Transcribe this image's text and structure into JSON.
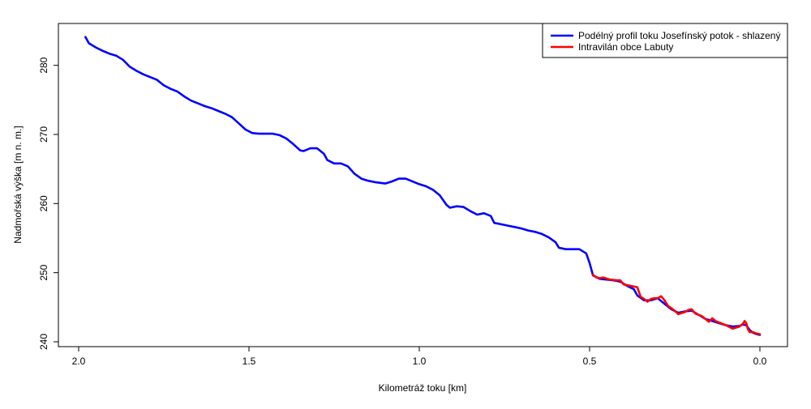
{
  "chart_data": {
    "type": "line",
    "xlabel": "Kilometráž toku [km]",
    "ylabel": "Nadmořská výška [m n. m.]",
    "xlim": [
      2.0,
      0.0
    ],
    "ylim": [
      240,
      285
    ],
    "x_reversed": true,
    "x_ticks": [
      2.0,
      1.5,
      1.0,
      0.5,
      0.0
    ],
    "x_tick_labels": [
      "2.0",
      "1.5",
      "1.0",
      "0.5",
      "0.0"
    ],
    "y_ticks": [
      240,
      250,
      260,
      270,
      280
    ],
    "y_tick_labels": [
      "240",
      "250",
      "260",
      "270",
      "280"
    ],
    "grid": false,
    "legend_position": "top-right",
    "legend": [
      {
        "label": "Podélný profil toku Josefínský potok - shlazený",
        "color": "#0000ff"
      },
      {
        "label": "Intravilán obce Labuty",
        "color": "#ff0000"
      }
    ],
    "series": [
      {
        "name": "Podélný profil toku Josefínský potok - shlazený",
        "color": "#0000ff",
        "points": [
          [
            1.98,
            284.1
          ],
          [
            1.97,
            283.2
          ],
          [
            1.95,
            282.6
          ],
          [
            1.93,
            282.1
          ],
          [
            1.91,
            281.7
          ],
          [
            1.89,
            281.4
          ],
          [
            1.87,
            280.8
          ],
          [
            1.85,
            279.8
          ],
          [
            1.83,
            279.2
          ],
          [
            1.81,
            278.7
          ],
          [
            1.79,
            278.3
          ],
          [
            1.77,
            277.9
          ],
          [
            1.75,
            277.1
          ],
          [
            1.73,
            276.6
          ],
          [
            1.71,
            276.2
          ],
          [
            1.69,
            275.5
          ],
          [
            1.67,
            274.9
          ],
          [
            1.65,
            274.5
          ],
          [
            1.63,
            274.1
          ],
          [
            1.61,
            273.8
          ],
          [
            1.59,
            273.4
          ],
          [
            1.57,
            273.0
          ],
          [
            1.55,
            272.5
          ],
          [
            1.53,
            271.6
          ],
          [
            1.51,
            270.7
          ],
          [
            1.49,
            270.2
          ],
          [
            1.47,
            270.1
          ],
          [
            1.45,
            270.1
          ],
          [
            1.43,
            270.1
          ],
          [
            1.41,
            269.9
          ],
          [
            1.39,
            269.4
          ],
          [
            1.37,
            268.6
          ],
          [
            1.35,
            267.7
          ],
          [
            1.34,
            267.6
          ],
          [
            1.32,
            268.0
          ],
          [
            1.3,
            268.0
          ],
          [
            1.28,
            267.2
          ],
          [
            1.27,
            266.3
          ],
          [
            1.25,
            265.8
          ],
          [
            1.23,
            265.8
          ],
          [
            1.21,
            265.4
          ],
          [
            1.19,
            264.3
          ],
          [
            1.17,
            263.6
          ],
          [
            1.15,
            263.3
          ],
          [
            1.13,
            263.1
          ],
          [
            1.1,
            262.9
          ],
          [
            1.08,
            263.2
          ],
          [
            1.06,
            263.6
          ],
          [
            1.04,
            263.6
          ],
          [
            1.02,
            263.2
          ],
          [
            1.0,
            262.8
          ],
          [
            0.98,
            262.5
          ],
          [
            0.96,
            262.0
          ],
          [
            0.94,
            261.2
          ],
          [
            0.92,
            259.8
          ],
          [
            0.91,
            259.4
          ],
          [
            0.89,
            259.6
          ],
          [
            0.87,
            259.5
          ],
          [
            0.85,
            258.9
          ],
          [
            0.83,
            258.4
          ],
          [
            0.81,
            258.6
          ],
          [
            0.79,
            258.2
          ],
          [
            0.78,
            257.2
          ],
          [
            0.76,
            257.0
          ],
          [
            0.74,
            256.8
          ],
          [
            0.72,
            256.6
          ],
          [
            0.7,
            256.4
          ],
          [
            0.68,
            256.1
          ],
          [
            0.66,
            255.9
          ],
          [
            0.64,
            255.6
          ],
          [
            0.62,
            255.1
          ],
          [
            0.6,
            254.4
          ],
          [
            0.59,
            253.6
          ],
          [
            0.57,
            253.4
          ],
          [
            0.55,
            253.4
          ],
          [
            0.53,
            253.4
          ],
          [
            0.51,
            252.8
          ],
          [
            0.5,
            251.4
          ],
          [
            0.49,
            249.6
          ],
          [
            0.47,
            249.1
          ],
          [
            0.45,
            249.0
          ],
          [
            0.43,
            248.9
          ],
          [
            0.41,
            248.7
          ],
          [
            0.39,
            248.1
          ],
          [
            0.37,
            247.6
          ],
          [
            0.36,
            246.7
          ],
          [
            0.34,
            246.0
          ],
          [
            0.32,
            246.0
          ],
          [
            0.3,
            246.3
          ],
          [
            0.28,
            245.5
          ],
          [
            0.26,
            244.7
          ],
          [
            0.24,
            244.2
          ],
          [
            0.22,
            244.4
          ],
          [
            0.2,
            244.5
          ],
          [
            0.18,
            243.9
          ],
          [
            0.16,
            243.3
          ],
          [
            0.14,
            243.0
          ],
          [
            0.12,
            242.7
          ],
          [
            0.1,
            242.4
          ],
          [
            0.08,
            242.2
          ],
          [
            0.06,
            242.3
          ],
          [
            0.05,
            242.5
          ],
          [
            0.04,
            242.4
          ],
          [
            0.03,
            241.7
          ],
          [
            0.02,
            241.3
          ],
          [
            0.01,
            241.1
          ],
          [
            0.0,
            241.0
          ]
        ]
      },
      {
        "name": "Intravilán obce Labuty",
        "color": "#ff0000",
        "points": [
          [
            0.49,
            249.7
          ],
          [
            0.48,
            249.3
          ],
          [
            0.47,
            249.2
          ],
          [
            0.46,
            249.3
          ],
          [
            0.44,
            249.0
          ],
          [
            0.42,
            248.9
          ],
          [
            0.41,
            248.9
          ],
          [
            0.4,
            248.3
          ],
          [
            0.38,
            248.1
          ],
          [
            0.36,
            247.9
          ],
          [
            0.35,
            246.5
          ],
          [
            0.34,
            246.2
          ],
          [
            0.33,
            245.8
          ],
          [
            0.32,
            246.2
          ],
          [
            0.31,
            246.3
          ],
          [
            0.3,
            246.3
          ],
          [
            0.29,
            246.6
          ],
          [
            0.28,
            246.0
          ],
          [
            0.27,
            245.2
          ],
          [
            0.25,
            244.5
          ],
          [
            0.24,
            244.0
          ],
          [
            0.22,
            244.3
          ],
          [
            0.21,
            244.6
          ],
          [
            0.2,
            244.7
          ],
          [
            0.19,
            244.1
          ],
          [
            0.17,
            243.7
          ],
          [
            0.16,
            243.3
          ],
          [
            0.15,
            242.9
          ],
          [
            0.14,
            243.4
          ],
          [
            0.13,
            243.0
          ],
          [
            0.11,
            242.6
          ],
          [
            0.1,
            242.4
          ],
          [
            0.08,
            241.9
          ],
          [
            0.06,
            242.2
          ],
          [
            0.05,
            242.6
          ],
          [
            0.045,
            243.0
          ],
          [
            0.04,
            242.7
          ],
          [
            0.035,
            241.8
          ],
          [
            0.03,
            241.4
          ],
          [
            0.02,
            241.4
          ],
          [
            0.01,
            241.2
          ],
          [
            0.0,
            241.1
          ]
        ]
      }
    ]
  }
}
